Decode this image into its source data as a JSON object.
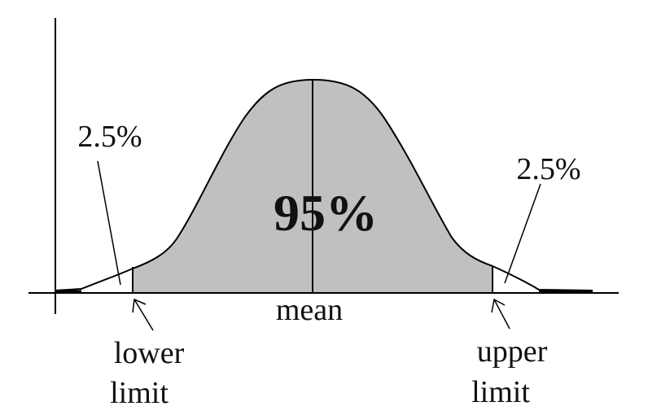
{
  "diagram": {
    "center_label": "95%",
    "left_tail_label": "2.5%",
    "right_tail_label": "2.5%",
    "mean_label": "mean",
    "lower_limit_lines": [
      "lower",
      "limit"
    ],
    "upper_limit_lines": [
      "upper",
      "limit"
    ],
    "colors": {
      "shaded_fill": "#c0c0c0",
      "stroke": "#000000",
      "background": "#ffffff"
    }
  }
}
